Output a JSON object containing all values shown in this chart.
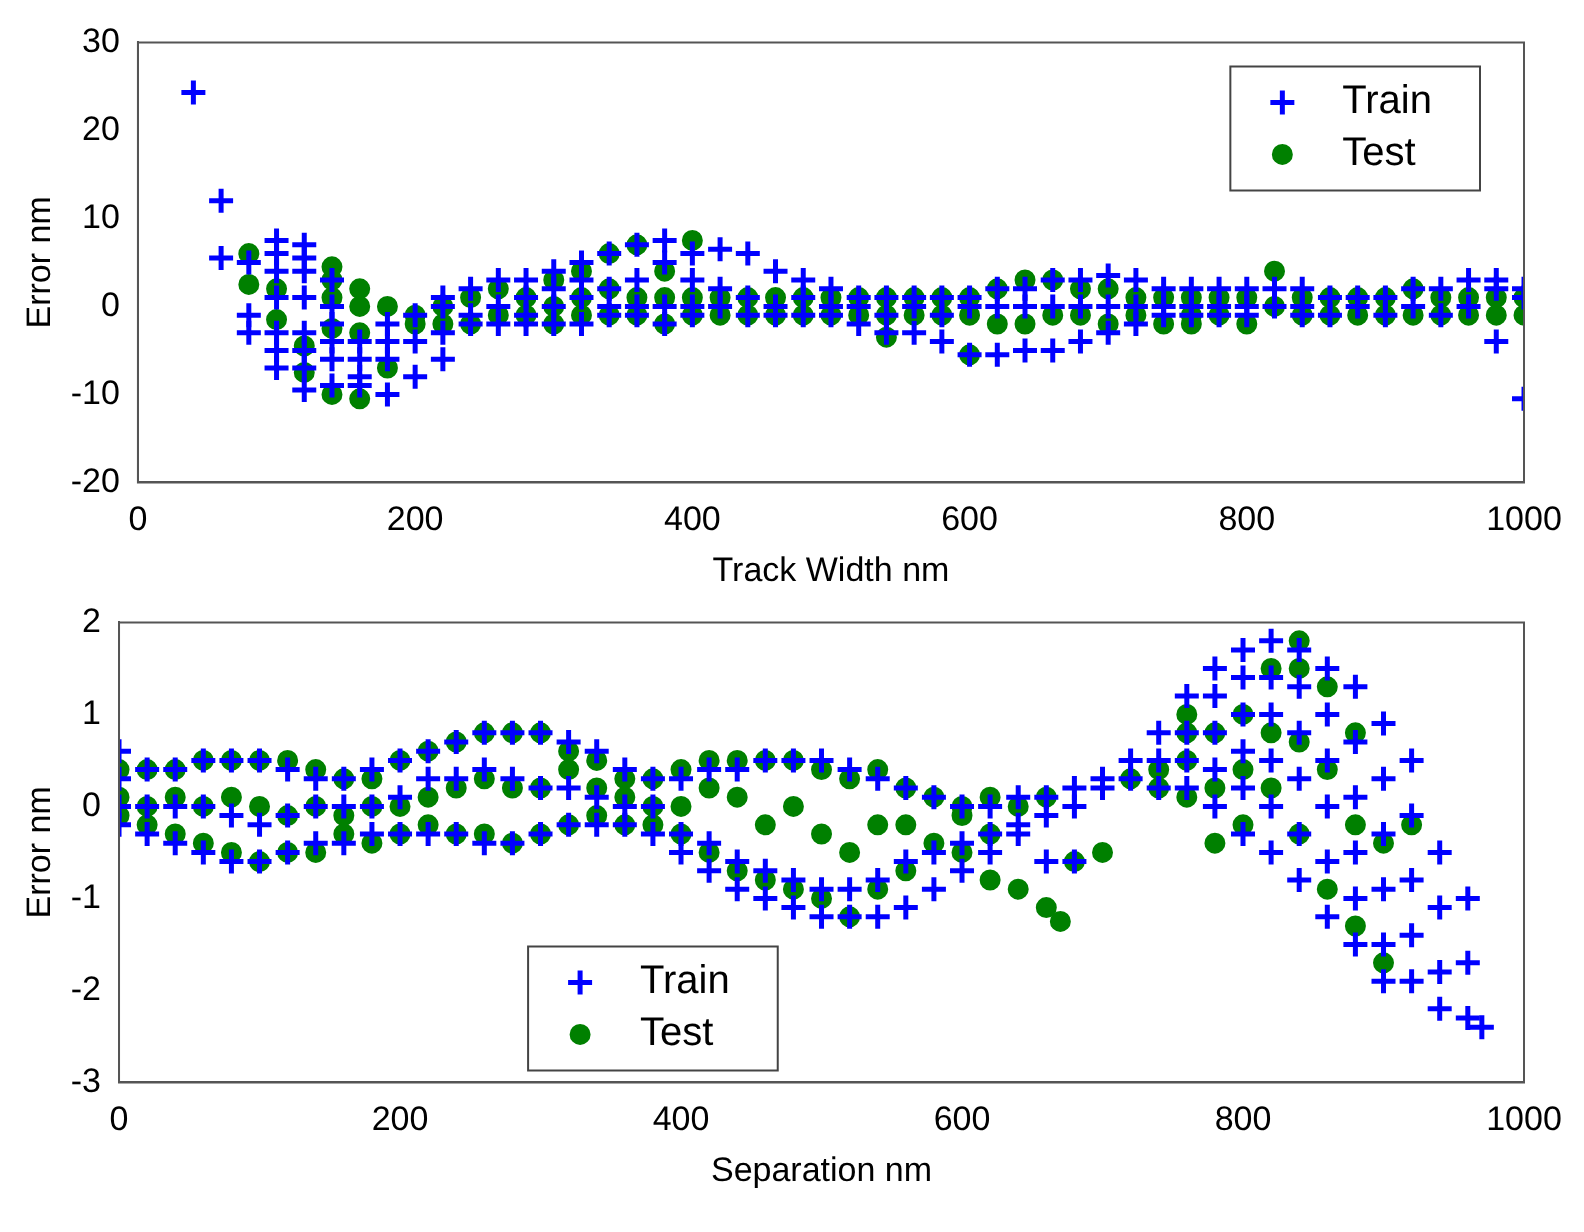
{
  "chart_data": [
    {
      "type": "scatter",
      "xlabel": "Track Width nm",
      "ylabel": "Error nm",
      "xlim": [
        0,
        1000
      ],
      "xticks": [
        0,
        200,
        400,
        600,
        800,
        1000
      ],
      "ylim": [
        -20,
        30
      ],
      "yticks": [
        -20,
        -10,
        0,
        10,
        20,
        30
      ],
      "grid": false,
      "legend": "top right",
      "series": [
        {
          "name": "Train",
          "color": "#0000ff",
          "marker": "cross",
          "x": [
            40,
            60,
            60,
            80,
            80,
            80,
            100,
            100,
            100,
            100,
            100,
            100,
            100,
            120,
            120,
            120,
            120,
            120,
            120,
            120,
            120,
            140,
            140,
            140,
            140,
            140,
            140,
            160,
            160,
            160,
            160,
            180,
            180,
            180,
            180,
            200,
            200,
            200,
            220,
            220,
            220,
            220,
            240,
            240,
            240,
            260,
            260,
            260,
            280,
            280,
            280,
            280,
            300,
            300,
            300,
            300,
            320,
            320,
            320,
            320,
            340,
            340,
            340,
            340,
            360,
            360,
            360,
            360,
            380,
            380,
            380,
            380,
            400,
            400,
            400,
            400,
            420,
            420,
            420,
            440,
            440,
            440,
            460,
            460,
            460,
            480,
            480,
            480,
            500,
            500,
            500,
            520,
            520,
            520,
            540,
            540,
            540,
            560,
            560,
            560,
            580,
            580,
            580,
            600,
            600,
            600,
            620,
            620,
            620,
            640,
            640,
            640,
            660,
            660,
            660,
            680,
            680,
            680,
            700,
            700,
            700,
            720,
            720,
            720,
            740,
            740,
            740,
            760,
            760,
            760,
            780,
            780,
            780,
            800,
            800,
            800,
            820,
            820,
            840,
            840,
            840,
            860,
            860,
            880,
            880,
            900,
            900,
            920,
            920,
            940,
            940,
            960,
            960,
            980,
            980,
            980,
            1000,
            1000,
            1000
          ],
          "values": [
            24.3,
            12,
            5.5,
            5,
            -1,
            -3,
            7.5,
            6,
            4,
            1,
            -3,
            -5,
            -7,
            7,
            5.5,
            4,
            1,
            -3,
            -5,
            -7,
            -9.5,
            3,
            0,
            -2,
            -4,
            -6,
            -9,
            -4,
            -6,
            -8,
            -9,
            -2,
            -4,
            -6,
            -10,
            -1,
            -4,
            -8,
            0,
            1,
            -3,
            -6,
            2,
            -1,
            -2,
            3,
            0,
            -2,
            3,
            1,
            -1,
            -2,
            4,
            2,
            0,
            -2,
            5,
            3,
            1,
            -2,
            6,
            2,
            0,
            -1,
            7,
            3,
            0,
            -1,
            7.5,
            5,
            0,
            -2,
            6,
            3,
            0,
            -1,
            6.5,
            2,
            0,
            6,
            1,
            -1,
            4,
            0,
            -1,
            3,
            1,
            -1,
            2,
            0,
            -1,
            1,
            0,
            -2,
            1,
            -1,
            -3,
            1,
            0,
            -3,
            1,
            -1,
            -4,
            1,
            0,
            -5.5,
            2,
            0,
            -5.5,
            2,
            0,
            -5,
            3,
            0,
            -5,
            3,
            0,
            -4,
            3.5,
            0,
            -3,
            3,
            0,
            -2,
            2,
            0,
            -1,
            2,
            0,
            -1,
            2,
            0,
            -1,
            2,
            0,
            -1,
            2,
            0,
            2,
            0,
            -1,
            1,
            -1,
            1,
            0,
            1,
            -1,
            2,
            0,
            2,
            -1,
            3,
            0,
            3,
            2,
            -4,
            2,
            1,
            -10.5
          ]
        },
        {
          "name": "Test",
          "color": "#008000",
          "marker": "circle",
          "x": [
            80,
            80,
            100,
            100,
            120,
            120,
            140,
            140,
            140,
            140,
            140,
            160,
            160,
            160,
            160,
            180,
            180,
            200,
            200,
            220,
            220,
            240,
            240,
            260,
            260,
            280,
            280,
            300,
            300,
            300,
            320,
            320,
            320,
            340,
            340,
            340,
            360,
            360,
            360,
            380,
            380,
            380,
            400,
            400,
            400,
            420,
            420,
            440,
            440,
            460,
            460,
            480,
            480,
            500,
            500,
            520,
            520,
            540,
            540,
            540,
            560,
            560,
            580,
            580,
            600,
            600,
            600,
            620,
            620,
            640,
            640,
            660,
            660,
            680,
            680,
            700,
            700,
            720,
            720,
            740,
            740,
            760,
            760,
            760,
            780,
            780,
            800,
            800,
            820,
            820,
            840,
            840,
            860,
            860,
            880,
            880,
            900,
            900,
            920,
            920,
            940,
            940,
            960,
            960,
            980,
            980,
            1000,
            1000
          ],
          "values": [
            6,
            2.5,
            2,
            -1.5,
            -4.5,
            -7.5,
            4.5,
            3,
            1,
            -2.5,
            -10,
            2,
            0,
            -3,
            -10.5,
            0,
            -7,
            -2,
            -1,
            0,
            -2,
            1,
            -2,
            2,
            -1,
            1,
            -1,
            3,
            0,
            -2,
            4,
            1,
            -1,
            6,
            2,
            -1,
            7,
            1,
            -1,
            4,
            1,
            -2,
            7.5,
            1,
            -1,
            1,
            -1,
            1,
            -1,
            1,
            -1,
            1,
            -1,
            1,
            -1,
            1,
            -1,
            1,
            -1,
            -3.5,
            1,
            -1,
            1,
            -1,
            1,
            -1,
            -5.5,
            2,
            -2,
            3,
            -2,
            3,
            -1,
            2,
            -1,
            2,
            -2,
            1,
            -1,
            1,
            -2,
            1,
            -1,
            -2,
            1,
            -1,
            1,
            -2,
            4,
            0,
            1,
            -1,
            1,
            -1,
            1,
            -1,
            1,
            -1,
            2,
            -1,
            1,
            -1,
            1,
            -1,
            1,
            -1,
            1,
            -1
          ]
        }
      ]
    },
    {
      "type": "scatter",
      "xlabel": "Separation nm",
      "ylabel": "Error nm",
      "xlim": [
        0,
        1000
      ],
      "xticks": [
        0,
        200,
        400,
        600,
        800,
        1000
      ],
      "ylim": [
        -3,
        2
      ],
      "yticks": [
        -3,
        -2,
        -1,
        0,
        1,
        2
      ],
      "grid": false,
      "legend": "bottom",
      "series": [
        {
          "name": "Train",
          "color": "#0000ff",
          "marker": "cross",
          "x": [
            0,
            0,
            0,
            0,
            20,
            20,
            20,
            40,
            40,
            40,
            60,
            60,
            60,
            80,
            80,
            80,
            100,
            100,
            100,
            120,
            120,
            120,
            140,
            140,
            140,
            160,
            160,
            160,
            180,
            180,
            180,
            200,
            200,
            200,
            220,
            220,
            220,
            240,
            240,
            240,
            260,
            260,
            260,
            280,
            280,
            280,
            300,
            300,
            300,
            320,
            320,
            320,
            340,
            340,
            340,
            360,
            360,
            360,
            380,
            380,
            380,
            400,
            400,
            400,
            420,
            420,
            420,
            440,
            440,
            440,
            460,
            460,
            460,
            480,
            480,
            480,
            500,
            500,
            500,
            520,
            520,
            520,
            540,
            540,
            540,
            560,
            560,
            560,
            580,
            580,
            580,
            600,
            600,
            600,
            620,
            620,
            620,
            640,
            640,
            640,
            660,
            660,
            660,
            680,
            680,
            680,
            700,
            700,
            720,
            720,
            740,
            740,
            740,
            760,
            760,
            760,
            760,
            780,
            780,
            780,
            780,
            780,
            800,
            800,
            800,
            800,
            800,
            800,
            820,
            820,
            820,
            820,
            820,
            820,
            840,
            840,
            840,
            840,
            840,
            840,
            860,
            860,
            860,
            860,
            860,
            860,
            880,
            880,
            880,
            880,
            880,
            880,
            900,
            900,
            900,
            900,
            900,
            900,
            920,
            920,
            920,
            920,
            920,
            940,
            940,
            940,
            940,
            960,
            960,
            960,
            970
          ],
          "values": [
            0.6,
            0.3,
            0,
            -0.2,
            0.4,
            0,
            -0.3,
            0.4,
            0,
            -0.4,
            0.5,
            0,
            -0.5,
            0.5,
            -0.1,
            -0.6,
            0.5,
            -0.2,
            -0.6,
            0.4,
            -0.1,
            -0.5,
            0.3,
            0,
            -0.4,
            0.3,
            0,
            -0.4,
            0.4,
            0,
            -0.3,
            0.5,
            0.1,
            -0.3,
            0.6,
            0.3,
            -0.3,
            0.7,
            0.3,
            -0.3,
            0.8,
            0.4,
            -0.4,
            0.8,
            0.3,
            -0.4,
            0.8,
            0.2,
            -0.3,
            0.7,
            0.2,
            -0.2,
            0.6,
            0.1,
            -0.2,
            0.4,
            0,
            -0.2,
            0.3,
            0,
            -0.3,
            0.3,
            -0.3,
            -0.5,
            0.4,
            -0.4,
            -0.7,
            0.4,
            -0.6,
            -0.9,
            0.5,
            -0.7,
            -1.0,
            0.5,
            -0.8,
            -1.1,
            0.5,
            -0.9,
            -1.2,
            0.4,
            -0.9,
            -1.2,
            0.3,
            -0.8,
            -1.2,
            0.2,
            -0.6,
            -1.1,
            0.1,
            -0.5,
            -0.9,
            0,
            -0.4,
            -0.7,
            0,
            -0.3,
            -0.5,
            0.1,
            -0.2,
            -0.3,
            0.1,
            -0.1,
            -0.6,
            0.2,
            0,
            -0.6,
            0.3,
            0.2,
            0.5,
            0.3,
            0.8,
            0.5,
            0.2,
            1.2,
            0.8,
            0.5,
            0.2,
            1.5,
            1.2,
            0.8,
            0.4,
            0,
            1.7,
            1.4,
            1.0,
            0.6,
            0.2,
            -0.3,
            1.8,
            1.4,
            1.0,
            0.5,
            0,
            -0.5,
            1.7,
            1.3,
            0.8,
            0.3,
            -0.3,
            -0.8,
            1.5,
            1.0,
            0.5,
            0,
            -0.6,
            -1.2,
            1.3,
            0.7,
            0.1,
            -0.5,
            -1.0,
            -1.5,
            0.9,
            0.3,
            -0.3,
            -0.9,
            -1.5,
            -1.9,
            0.5,
            -0.1,
            -0.8,
            -1.4,
            -1.9,
            -0.5,
            -1.1,
            -1.8,
            -2.2,
            -1.0,
            -1.7,
            -2.3,
            -2.4
          ]
        },
        {
          "name": "Test",
          "color": "#008000",
          "marker": "circle",
          "x": [
            0,
            0,
            0,
            20,
            20,
            20,
            40,
            40,
            40,
            60,
            60,
            60,
            80,
            80,
            80,
            100,
            100,
            100,
            120,
            120,
            120,
            140,
            140,
            140,
            160,
            160,
            160,
            180,
            180,
            180,
            200,
            200,
            200,
            220,
            220,
            220,
            240,
            240,
            240,
            260,
            260,
            260,
            280,
            280,
            280,
            300,
            300,
            300,
            320,
            320,
            320,
            340,
            340,
            340,
            360,
            360,
            360,
            380,
            380,
            380,
            400,
            400,
            400,
            420,
            420,
            420,
            440,
            440,
            440,
            460,
            460,
            460,
            480,
            480,
            480,
            500,
            500,
            500,
            520,
            520,
            520,
            540,
            540,
            540,
            560,
            560,
            560,
            580,
            580,
            600,
            600,
            600,
            620,
            620,
            620,
            640,
            640,
            660,
            660,
            670,
            680,
            700,
            720,
            740,
            740,
            760,
            760,
            760,
            760,
            780,
            780,
            780,
            800,
            800,
            800,
            820,
            820,
            820,
            840,
            840,
            840,
            840,
            860,
            860,
            860,
            880,
            880,
            880,
            900,
            900,
            920
          ],
          "values": [
            0.4,
            0.1,
            -0.1,
            0.4,
            0,
            -0.2,
            0.4,
            0.1,
            -0.3,
            0.5,
            0,
            -0.4,
            0.5,
            0.1,
            -0.5,
            0.5,
            0,
            -0.6,
            0.5,
            -0.1,
            -0.5,
            0.4,
            0,
            -0.5,
            0.3,
            -0.1,
            -0.3,
            0.3,
            0,
            -0.4,
            0.5,
            0,
            -0.3,
            0.6,
            0.1,
            -0.2,
            0.7,
            0.2,
            -0.3,
            0.8,
            0.3,
            -0.3,
            0.8,
            0.2,
            -0.4,
            0.8,
            0.2,
            -0.3,
            0.6,
            0.4,
            -0.2,
            0.5,
            0.2,
            -0.1,
            0.3,
            0.1,
            -0.2,
            0.3,
            0,
            -0.2,
            0.4,
            0,
            -0.3,
            0.5,
            0.2,
            -0.5,
            0.5,
            0.1,
            -0.7,
            0.5,
            -0.2,
            -0.8,
            0.5,
            0,
            -0.9,
            0.4,
            -0.3,
            -1.0,
            0.3,
            -0.5,
            -1.2,
            0.4,
            -0.2,
            -0.9,
            0.2,
            -0.2,
            -0.7,
            0.1,
            -0.4,
            0,
            -0.1,
            -0.5,
            0.1,
            -0.3,
            -0.8,
            0,
            -0.9,
            0.1,
            -1.1,
            -1.25,
            -0.6,
            -0.5,
            0.3,
            0.4,
            0.2,
            1.0,
            0.8,
            0.5,
            0.1,
            0.8,
            0.2,
            -0.4,
            1.0,
            0.4,
            -0.2,
            1.5,
            0.8,
            0.2,
            1.8,
            1.5,
            0.7,
            -0.3,
            1.3,
            0.4,
            -0.9,
            0.8,
            -0.2,
            -1.3,
            -0.4,
            -1.7,
            -0.2
          ]
        }
      ]
    }
  ]
}
